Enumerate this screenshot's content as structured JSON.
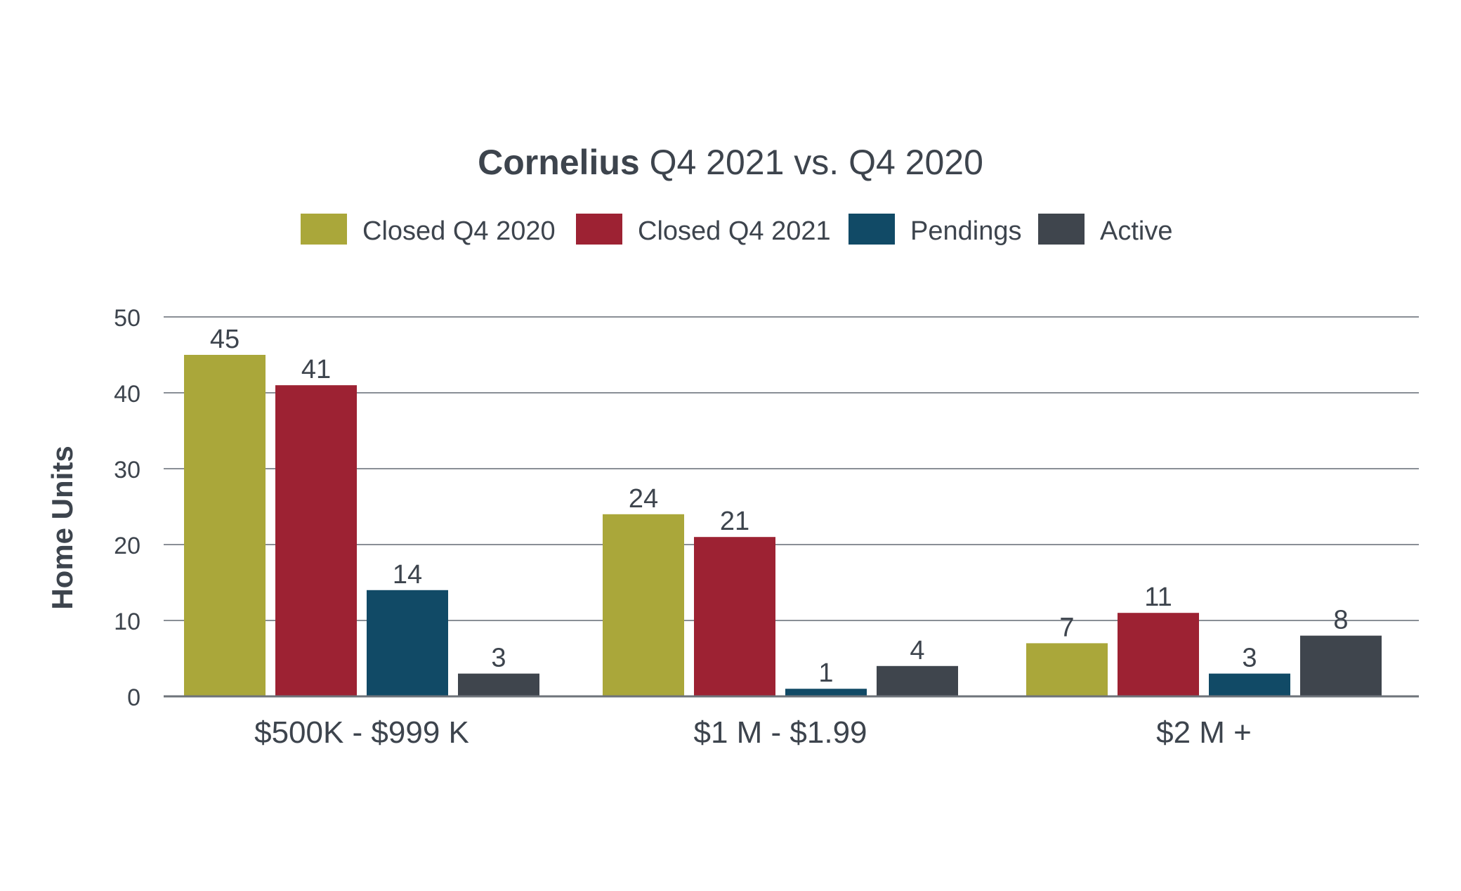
{
  "chart_data": {
    "type": "bar",
    "title_bold": "Cornelius",
    "title_rest": " Q4 2021 vs. Q4 2020",
    "ylabel": "Home Units",
    "xlabel": "",
    "ylim": [
      0,
      50
    ],
    "yticks": [
      "0",
      "10",
      "20",
      "30",
      "40",
      "50"
    ],
    "grid": true,
    "legend_position": "top-center",
    "categories": [
      "$500K - $999 K",
      "$1 M - $1.99",
      "$2 M +"
    ],
    "series": [
      {
        "name": "Closed Q4 2020",
        "color": "#aaa73a",
        "values": [
          45,
          24,
          7
        ],
        "labels": [
          "45",
          "24",
          "7"
        ]
      },
      {
        "name": "Closed Q4 2021",
        "color": "#9d2233",
        "values": [
          41,
          21,
          11
        ],
        "labels": [
          "41",
          "21",
          "11"
        ]
      },
      {
        "name": "Pendings",
        "color": "#114a66",
        "values": [
          14,
          1,
          3
        ],
        "labels": [
          "14",
          "1",
          "3"
        ]
      },
      {
        "name": "Active",
        "color": "#3f454d",
        "values": [
          3,
          4,
          8
        ],
        "labels": [
          "3",
          "4",
          "8"
        ]
      }
    ]
  }
}
